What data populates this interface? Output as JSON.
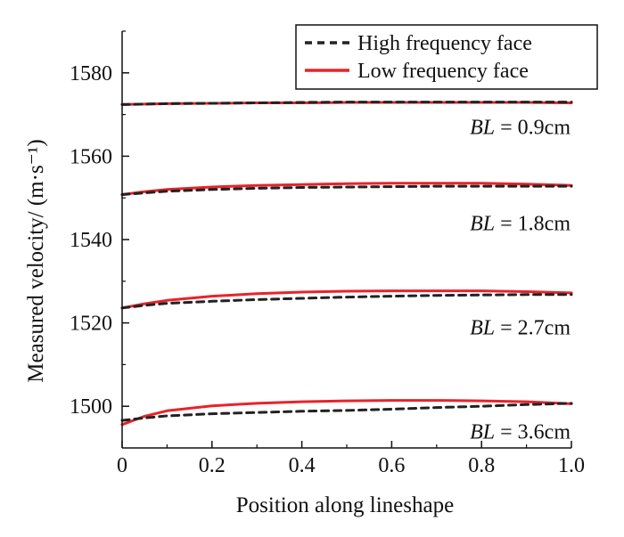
{
  "chart_data": {
    "type": "line",
    "title": "",
    "xlabel": "Position along lineshape",
    "ylabel": "Measured velocity/ (m·s⁻¹)",
    "xlim": [
      0,
      1.0
    ],
    "ylim": [
      1490,
      1590
    ],
    "x_ticks": [
      "0",
      "0.2",
      "0.4",
      "0.6",
      "0.8",
      "1.0"
    ],
    "y_ticks": [
      "1500",
      "1520",
      "1540",
      "1560",
      "1580"
    ],
    "y_tick_values": [
      1500,
      1520,
      1540,
      1560,
      1580
    ],
    "legend": {
      "position": "top-right",
      "entries": [
        {
          "label": "High frequency face",
          "style": "dashed",
          "color": "#222222"
        },
        {
          "label": "Low frequency face",
          "style": "solid",
          "color": "#e8232a"
        }
      ]
    },
    "x": [
      0,
      0.05,
      0.1,
      0.2,
      0.3,
      0.4,
      0.5,
      0.6,
      0.7,
      0.8,
      0.9,
      1.0
    ],
    "series": [
      {
        "name": "High frequency face",
        "group": "0.9cm",
        "values": [
          1572.4,
          1572.5,
          1572.6,
          1572.7,
          1572.8,
          1572.9,
          1573.0,
          1573.0,
          1573.0,
          1573.0,
          1573.0,
          1573.0
        ]
      },
      {
        "name": "Low frequency face",
        "group": "0.9cm",
        "values": [
          1572.4,
          1572.5,
          1572.6,
          1572.7,
          1572.8,
          1572.8,
          1572.9,
          1572.9,
          1572.9,
          1572.9,
          1572.9,
          1572.8
        ]
      },
      {
        "name": "High frequency face",
        "group": "1.8cm",
        "values": [
          1550.8,
          1551.2,
          1551.6,
          1552.0,
          1552.3,
          1552.5,
          1552.6,
          1552.7,
          1552.8,
          1552.8,
          1552.8,
          1552.8
        ]
      },
      {
        "name": "Low frequency face",
        "group": "1.8cm",
        "values": [
          1550.8,
          1551.5,
          1552.0,
          1552.6,
          1553.0,
          1553.2,
          1553.4,
          1553.5,
          1553.5,
          1553.5,
          1553.3,
          1553.0
        ]
      },
      {
        "name": "High frequency face",
        "group": "2.7cm",
        "values": [
          1523.6,
          1524.2,
          1524.7,
          1525.2,
          1525.6,
          1525.9,
          1526.2,
          1526.4,
          1526.6,
          1526.7,
          1526.8,
          1526.8
        ]
      },
      {
        "name": "Low frequency face",
        "group": "2.7cm",
        "values": [
          1523.6,
          1524.6,
          1525.4,
          1526.4,
          1527.0,
          1527.4,
          1527.6,
          1527.7,
          1527.7,
          1527.7,
          1527.5,
          1527.2
        ]
      },
      {
        "name": "High frequency face",
        "group": "3.6cm",
        "values": [
          1496.6,
          1497.2,
          1497.7,
          1498.2,
          1498.5,
          1498.8,
          1499.0,
          1499.3,
          1499.7,
          1500.0,
          1500.4,
          1500.7
        ]
      },
      {
        "name": "Low frequency face",
        "group": "3.6cm",
        "values": [
          1495.6,
          1497.6,
          1498.9,
          1500.1,
          1500.7,
          1501.1,
          1501.3,
          1501.4,
          1501.4,
          1501.3,
          1501.1,
          1500.6
        ]
      }
    ],
    "annotations": [
      {
        "italic": "BL",
        "rest": " = 0.9cm",
        "y": 1567
      },
      {
        "italic": "BL",
        "rest": " = 1.8cm",
        "y": 1544
      },
      {
        "italic": "BL",
        "rest": " = 2.7cm",
        "y": 1519
      },
      {
        "italic": "BL",
        "rest": " = 3.6cm",
        "y": 1494
      }
    ]
  }
}
